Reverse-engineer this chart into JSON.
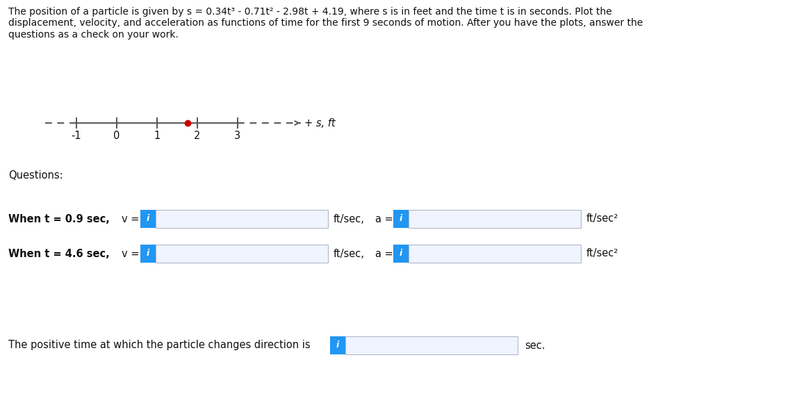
{
  "title_line1": "The position of a particle is given by s = 0.34t³ - 0.71t² - 2.98t + 4.19, where s is in feet and the time t is in seconds. Plot the",
  "title_line2": "displacement, velocity, and acceleration as functions of time for the first 9 seconds of motion. After you have the plots, answer the",
  "title_line3": "questions as a check on your work.",
  "questions_label": "Questions:",
  "row1_label": "When t = 0.9 sec,",
  "row1_v_label": "v =",
  "row1_a_label": "a =",
  "row1_v_unit": "ft/sec,",
  "row1_a_unit": "ft/sec²",
  "row2_label": "When t = 4.6 sec,",
  "row2_v_label": "v =",
  "row2_a_label": "a =",
  "row2_v_unit": "ft/sec,",
  "row2_a_unit": "ft/sec²",
  "bottom_label": "The positive time at which the particle changes direction is",
  "bottom_unit": "sec.",
  "nl_tick_labels": [
    "-1",
    "0",
    "1",
    "2",
    "3"
  ],
  "nl_label": "+ s, ft",
  "dot_color": "#cc0000",
  "box_color": "#2196f3",
  "box_i_color": "#ffffff",
  "input_box_facecolor": "#f0f4ff",
  "input_box_edgecolor": "#b0b8c8",
  "background_color": "#ffffff",
  "text_color": "#111111",
  "line_color": "#555555",
  "font_size_title": 10.0,
  "font_size_body": 10.5,
  "font_size_tick": 10.5
}
